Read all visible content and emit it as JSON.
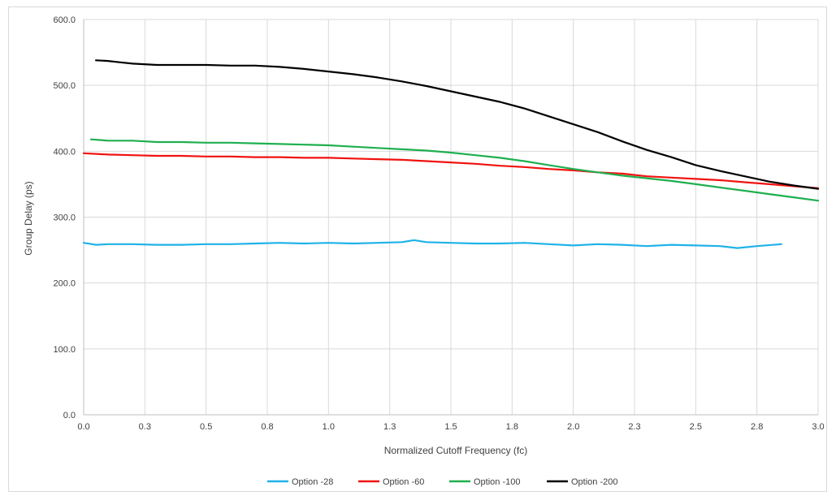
{
  "chart_data": {
    "type": "line",
    "title": "",
    "xlabel": "Normalized Cutoff Frequency (fc)",
    "ylabel": "Group Delay (ps)",
    "xlim": [
      0.0,
      3.0
    ],
    "ylim": [
      0.0,
      600.0
    ],
    "x_ticks": [
      "0.0",
      "0.3",
      "0.5",
      "0.8",
      "1.0",
      "1.3",
      "1.5",
      "1.8",
      "2.0",
      "2.3",
      "2.5",
      "2.8",
      "3.0"
    ],
    "y_ticks": [
      "0.0",
      "100.0",
      "200.0",
      "300.0",
      "400.0",
      "500.0",
      "600.0"
    ],
    "grid": true,
    "legend_position": "bottom",
    "series": [
      {
        "name": "Option -28",
        "color": "#1fb2e8",
        "x": [
          0.0,
          0.05,
          0.1,
          0.2,
          0.3,
          0.4,
          0.5,
          0.6,
          0.7,
          0.8,
          0.9,
          1.0,
          1.1,
          1.2,
          1.3,
          1.35,
          1.4,
          1.5,
          1.6,
          1.7,
          1.8,
          1.9,
          2.0,
          2.1,
          2.2,
          2.3,
          2.4,
          2.5,
          2.6,
          2.67,
          2.75,
          2.85
        ],
        "y": [
          261,
          258,
          259,
          259,
          258,
          258,
          259,
          259,
          260,
          261,
          260,
          261,
          260,
          261,
          262,
          265,
          262,
          261,
          260,
          260,
          261,
          259,
          257,
          259,
          258,
          256,
          258,
          257,
          256,
          253,
          256,
          259
        ]
      },
      {
        "name": "Option -60",
        "color": "#f0120f",
        "x": [
          0.0,
          0.1,
          0.2,
          0.3,
          0.4,
          0.5,
          0.6,
          0.7,
          0.8,
          0.9,
          1.0,
          1.1,
          1.2,
          1.3,
          1.4,
          1.5,
          1.6,
          1.7,
          1.8,
          1.9,
          2.0,
          2.1,
          2.2,
          2.3,
          2.4,
          2.5,
          2.6,
          2.7,
          2.8,
          2.9,
          3.0
        ],
        "y": [
          397,
          395,
          394,
          393,
          393,
          392,
          392,
          391,
          391,
          390,
          390,
          389,
          388,
          387,
          385,
          383,
          381,
          378,
          376,
          373,
          371,
          368,
          366,
          362,
          360,
          358,
          356,
          353,
          350,
          347,
          344
        ]
      },
      {
        "name": "Option -100",
        "color": "#1faf4f",
        "x": [
          0.03,
          0.1,
          0.2,
          0.3,
          0.4,
          0.5,
          0.6,
          0.7,
          0.8,
          0.9,
          1.0,
          1.1,
          1.2,
          1.3,
          1.4,
          1.5,
          1.6,
          1.7,
          1.8,
          1.9,
          2.0,
          2.1,
          2.2,
          2.3,
          2.4,
          2.5,
          2.6,
          2.7,
          2.8,
          2.9,
          3.0
        ],
        "y": [
          418,
          416,
          416,
          414,
          414,
          413,
          413,
          412,
          411,
          410,
          409,
          407,
          405,
          403,
          401,
          398,
          394,
          390,
          385,
          379,
          373,
          368,
          363,
          359,
          355,
          350,
          345,
          340,
          335,
          330,
          325
        ]
      },
      {
        "name": "Option -200",
        "color": "#000000",
        "x": [
          0.05,
          0.1,
          0.15,
          0.2,
          0.3,
          0.4,
          0.5,
          0.6,
          0.7,
          0.8,
          0.9,
          1.0,
          1.1,
          1.2,
          1.3,
          1.4,
          1.5,
          1.6,
          1.7,
          1.8,
          1.9,
          2.0,
          2.1,
          2.2,
          2.3,
          2.4,
          2.5,
          2.6,
          2.7,
          2.8,
          2.9,
          3.0
        ],
        "y": [
          538,
          537,
          535,
          533,
          531,
          531,
          531,
          530,
          530,
          528,
          525,
          521,
          517,
          512,
          506,
          499,
          491,
          483,
          475,
          465,
          453,
          441,
          429,
          415,
          402,
          391,
          379,
          370,
          362,
          354,
          348,
          343
        ]
      }
    ]
  }
}
